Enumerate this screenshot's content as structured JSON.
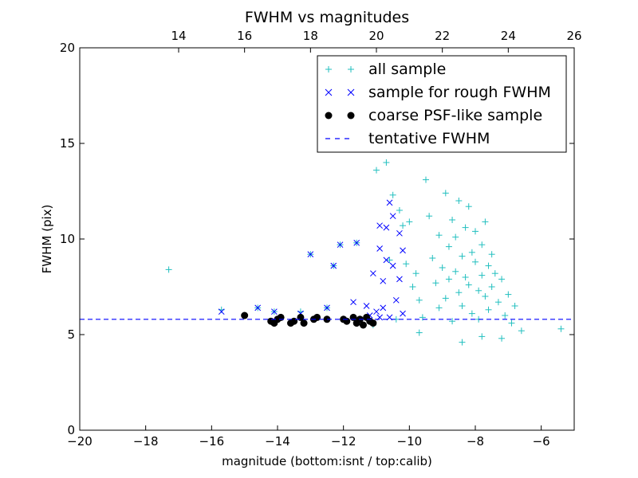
{
  "chart_data": {
    "type": "scatter",
    "title": "FWHM vs magnitudes",
    "xlabel": "magnitude (bottom:isnt / top:calib)",
    "ylabel": "FWHM (pix)",
    "xlim": [
      -20,
      -5
    ],
    "ylim": [
      0,
      20
    ],
    "x_ticks": [
      "−20",
      "−18",
      "−16",
      "−14",
      "−12",
      "−10",
      "−8",
      "−6"
    ],
    "y_ticks": [
      "0",
      "5",
      "10",
      "15",
      "20"
    ],
    "top_axis": {
      "offset": 31.0,
      "ticks": [
        "14",
        "16",
        "18",
        "20",
        "22",
        "24",
        "26"
      ]
    },
    "legend_position": "upper-right",
    "grid": false,
    "colors": {
      "all_sample": "#22bfbf",
      "rough": "#0000ff",
      "coarse": "#000000",
      "tentative": "#0000ff"
    },
    "series": [
      {
        "name": "all sample",
        "marker": "plus",
        "points": [
          [
            -17.3,
            8.4
          ],
          [
            -15.7,
            6.3
          ],
          [
            -14.6,
            6.4
          ],
          [
            -14.1,
            6.2
          ],
          [
            -13.3,
            6.2
          ],
          [
            -13.0,
            9.2
          ],
          [
            -12.5,
            6.4
          ],
          [
            -12.3,
            8.6
          ],
          [
            -12.1,
            9.7
          ],
          [
            -11.6,
            9.8
          ],
          [
            -11.1,
            5.5
          ],
          [
            -11.0,
            13.6
          ],
          [
            -10.7,
            14.0
          ],
          [
            -10.5,
            12.3
          ],
          [
            -10.3,
            11.5
          ],
          [
            -10.2,
            10.7
          ],
          [
            -10.1,
            8.7
          ],
          [
            -10.0,
            10.9
          ],
          [
            -9.9,
            7.5
          ],
          [
            -9.8,
            8.2
          ],
          [
            -9.7,
            6.8
          ],
          [
            -9.6,
            5.9
          ],
          [
            -9.5,
            13.1
          ],
          [
            -9.4,
            11.2
          ],
          [
            -9.3,
            9.0
          ],
          [
            -9.2,
            7.7
          ],
          [
            -9.1,
            6.4
          ],
          [
            -9.1,
            10.2
          ],
          [
            -9.0,
            8.5
          ],
          [
            -8.9,
            12.4
          ],
          [
            -8.9,
            6.9
          ],
          [
            -8.8,
            9.6
          ],
          [
            -8.8,
            7.9
          ],
          [
            -8.7,
            11.0
          ],
          [
            -8.7,
            5.7
          ],
          [
            -8.6,
            8.3
          ],
          [
            -8.6,
            10.1
          ],
          [
            -8.5,
            7.2
          ],
          [
            -8.5,
            12.0
          ],
          [
            -8.4,
            9.1
          ],
          [
            -8.4,
            6.5
          ],
          [
            -8.3,
            8.0
          ],
          [
            -8.3,
            10.6
          ],
          [
            -8.2,
            7.6
          ],
          [
            -8.2,
            11.7
          ],
          [
            -8.1,
            9.3
          ],
          [
            -8.1,
            6.1
          ],
          [
            -8.0,
            8.8
          ],
          [
            -8.0,
            10.4
          ],
          [
            -7.9,
            7.3
          ],
          [
            -7.9,
            5.8
          ],
          [
            -7.8,
            9.7
          ],
          [
            -7.8,
            8.1
          ],
          [
            -7.7,
            7.0
          ],
          [
            -7.7,
            10.9
          ],
          [
            -7.6,
            8.6
          ],
          [
            -7.6,
            6.3
          ],
          [
            -7.5,
            9.2
          ],
          [
            -7.5,
            7.5
          ],
          [
            -7.4,
            8.2
          ],
          [
            -7.3,
            6.7
          ],
          [
            -7.2,
            7.9
          ],
          [
            -7.1,
            6.0
          ],
          [
            -7.0,
            7.1
          ],
          [
            -6.9,
            5.6
          ],
          [
            -6.8,
            6.5
          ],
          [
            -6.6,
            5.2
          ],
          [
            -5.4,
            5.3
          ],
          [
            -10.4,
            5.8
          ],
          [
            -10.6,
            8.9
          ],
          [
            -9.7,
            5.1
          ],
          [
            -8.4,
            4.6
          ],
          [
            -7.8,
            4.9
          ],
          [
            -7.2,
            4.8
          ]
        ]
      },
      {
        "name": "sample for rough FWHM",
        "marker": "x",
        "points": [
          [
            -15.7,
            6.2
          ],
          [
            -14.6,
            6.4
          ],
          [
            -14.1,
            6.2
          ],
          [
            -13.3,
            6.1
          ],
          [
            -13.0,
            9.2
          ],
          [
            -12.5,
            6.4
          ],
          [
            -12.3,
            8.6
          ],
          [
            -12.1,
            9.7
          ],
          [
            -11.6,
            9.8
          ],
          [
            -11.7,
            6.7
          ],
          [
            -11.3,
            6.5
          ],
          [
            -11.0,
            6.2
          ],
          [
            -10.9,
            5.9
          ],
          [
            -10.8,
            7.8
          ],
          [
            -10.8,
            6.4
          ],
          [
            -10.7,
            10.6
          ],
          [
            -10.7,
            8.9
          ],
          [
            -10.6,
            11.9
          ],
          [
            -10.6,
            5.9
          ],
          [
            -10.5,
            11.2
          ],
          [
            -10.4,
            6.8
          ],
          [
            -10.3,
            10.3
          ],
          [
            -10.3,
            7.9
          ],
          [
            -10.2,
            9.4
          ],
          [
            -10.2,
            6.1
          ],
          [
            -10.9,
            10.7
          ],
          [
            -10.9,
            9.5
          ],
          [
            -11.1,
            8.2
          ],
          [
            -10.5,
            8.6
          ],
          [
            -11.2,
            6.0
          ]
        ]
      },
      {
        "name": "coarse PSF-like sample",
        "marker": "circle",
        "points": [
          [
            -15.0,
            6.0
          ],
          [
            -14.2,
            5.7
          ],
          [
            -14.1,
            5.6
          ],
          [
            -14.0,
            5.8
          ],
          [
            -13.9,
            5.9
          ],
          [
            -13.6,
            5.6
          ],
          [
            -13.5,
            5.7
          ],
          [
            -13.3,
            5.9
          ],
          [
            -13.2,
            5.6
          ],
          [
            -12.9,
            5.8
          ],
          [
            -12.8,
            5.9
          ],
          [
            -12.5,
            5.8
          ],
          [
            -12.0,
            5.8
          ],
          [
            -11.9,
            5.7
          ],
          [
            -11.7,
            5.9
          ],
          [
            -11.6,
            5.6
          ],
          [
            -11.5,
            5.8
          ],
          [
            -11.4,
            5.5
          ],
          [
            -11.3,
            5.9
          ],
          [
            -11.2,
            5.7
          ],
          [
            -11.1,
            5.6
          ]
        ]
      },
      {
        "name": "tentative FWHM",
        "style": "dashed-line",
        "y": 5.8
      }
    ]
  }
}
